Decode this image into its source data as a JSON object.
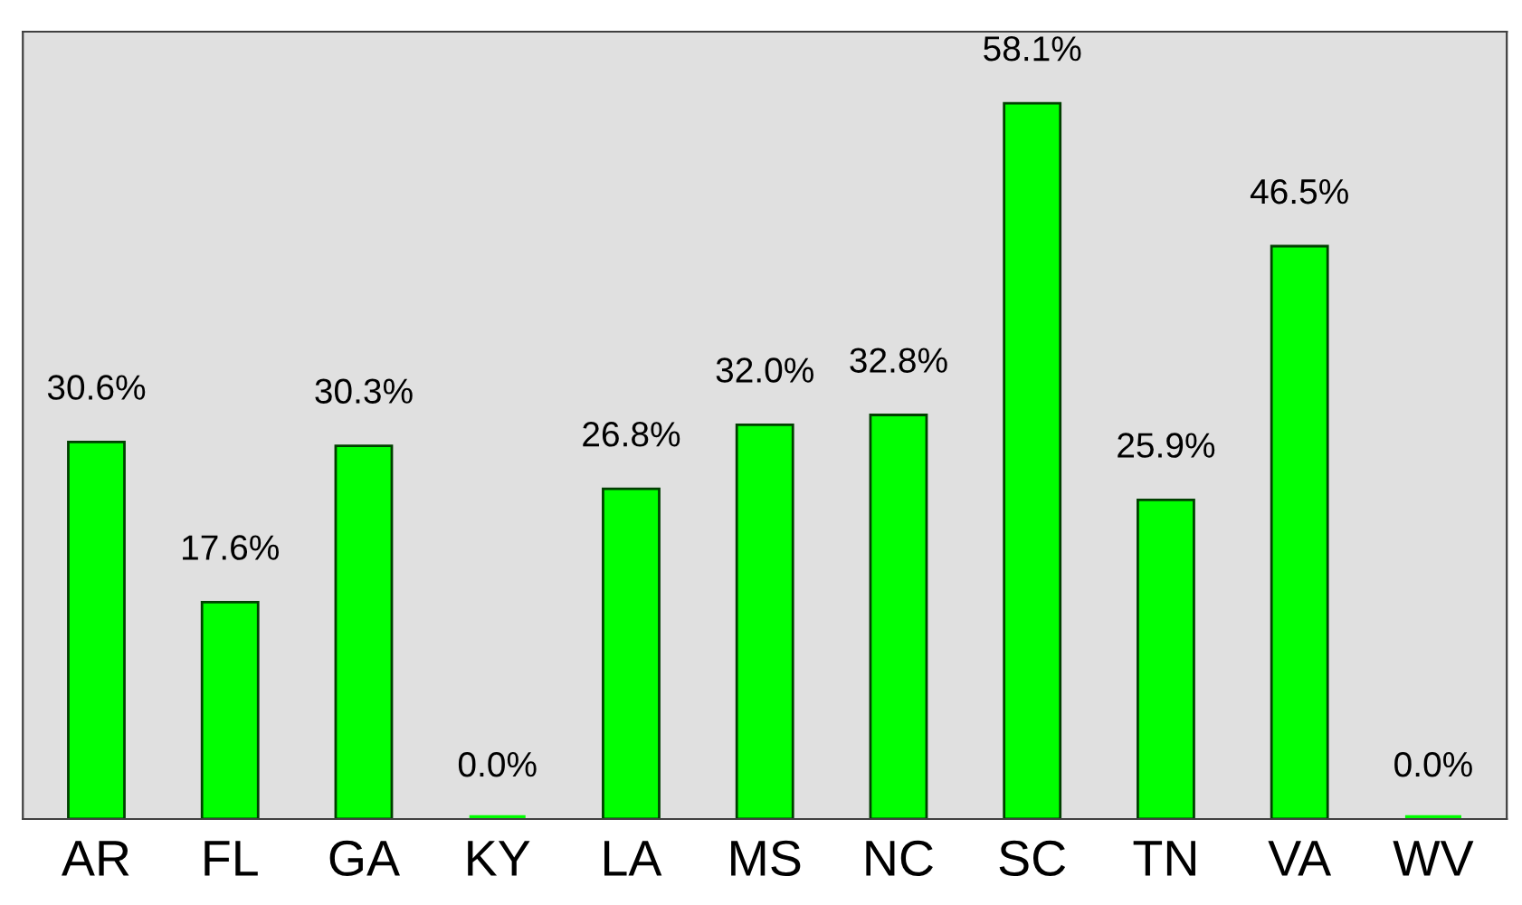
{
  "chart_data": {
    "type": "bar",
    "categories": [
      "AR",
      "FL",
      "GA",
      "KY",
      "LA",
      "MS",
      "NC",
      "SC",
      "TN",
      "VA",
      "WV"
    ],
    "values": [
      30.6,
      17.6,
      30.3,
      0.0,
      26.8,
      32.0,
      32.8,
      58.1,
      25.9,
      46.5,
      0.0
    ],
    "value_labels": [
      "30.6%",
      "17.6%",
      "30.3%",
      "0.0%",
      "26.8%",
      "32.0%",
      "32.8%",
      "58.1%",
      "25.9%",
      "46.5%",
      "0.0%"
    ],
    "color": "#00ff00",
    "tick_labels": "x",
    "grid": false
  }
}
